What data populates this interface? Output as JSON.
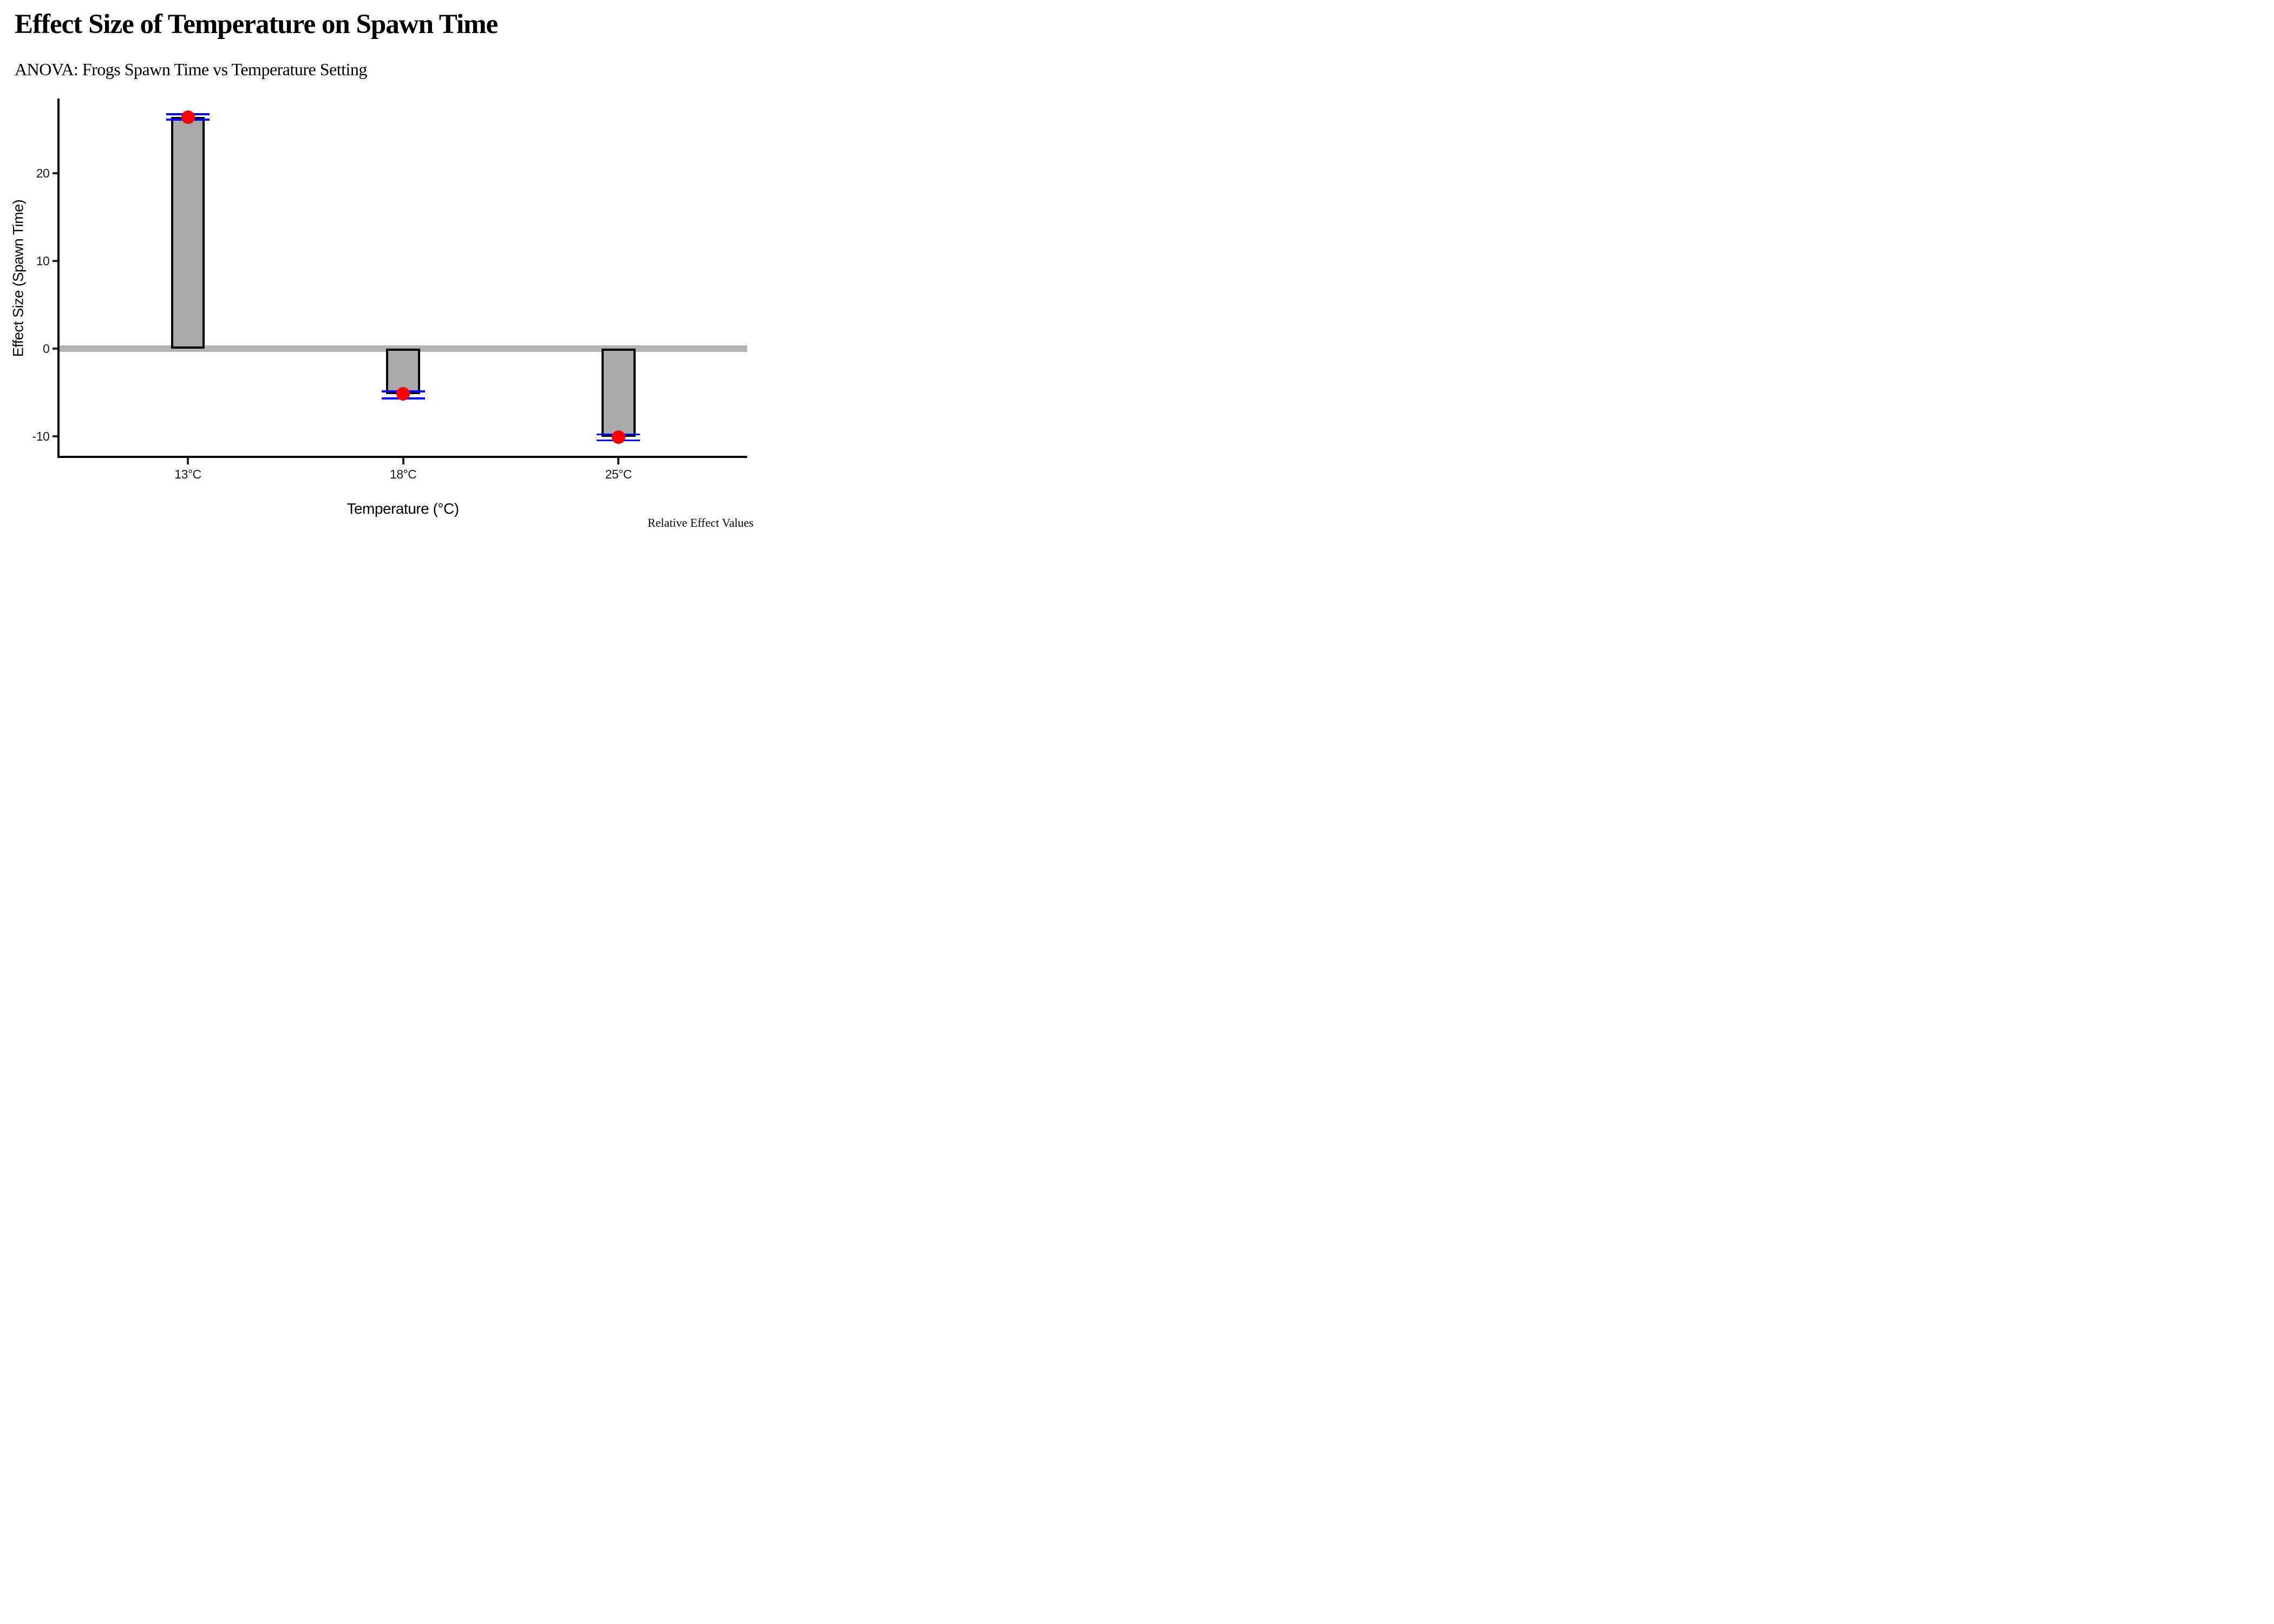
{
  "header": {
    "title": "Effect Size of Temperature on Spawn Time",
    "subtitle": "ANOVA: Frogs Spawn Time vs Temperature Setting"
  },
  "caption": "Relative Effect Values",
  "chart_data": {
    "type": "bar",
    "title": "Effect Size of Temperature on Spawn Time",
    "subtitle": "ANOVA: Frogs Spawn Time vs Temperature Setting",
    "categories": [
      "13°C",
      "18°C",
      "25°C"
    ],
    "series": [
      {
        "name": "effect_size_estimate",
        "values": [
          26.4,
          -5.2,
          -10.1
        ]
      },
      {
        "name": "ci_low",
        "values": [
          26.1,
          -5.7,
          -10.5
        ]
      },
      {
        "name": "ci_high",
        "values": [
          26.7,
          -4.9,
          -9.8
        ]
      }
    ],
    "xlabel": "Temperature (°C)",
    "ylabel": "Effect Size (Spawn Time)",
    "y_ticks": [
      20,
      10,
      0,
      -10
    ],
    "y_tick_labels": [
      "20",
      "10",
      "0",
      "-10"
    ],
    "ylim": [
      -12.5,
      28.5
    ],
    "grid": false,
    "legend": false,
    "zero_line": 0,
    "colors": {
      "bar_fill": "#A9A9A9",
      "bar_border": "#000000",
      "zero_line": "#B3B3B3",
      "estimate_point": "#FF0000",
      "ci_whisker": "#0000FF",
      "axis": "#000000",
      "tick": "#262626"
    },
    "annotations": []
  }
}
